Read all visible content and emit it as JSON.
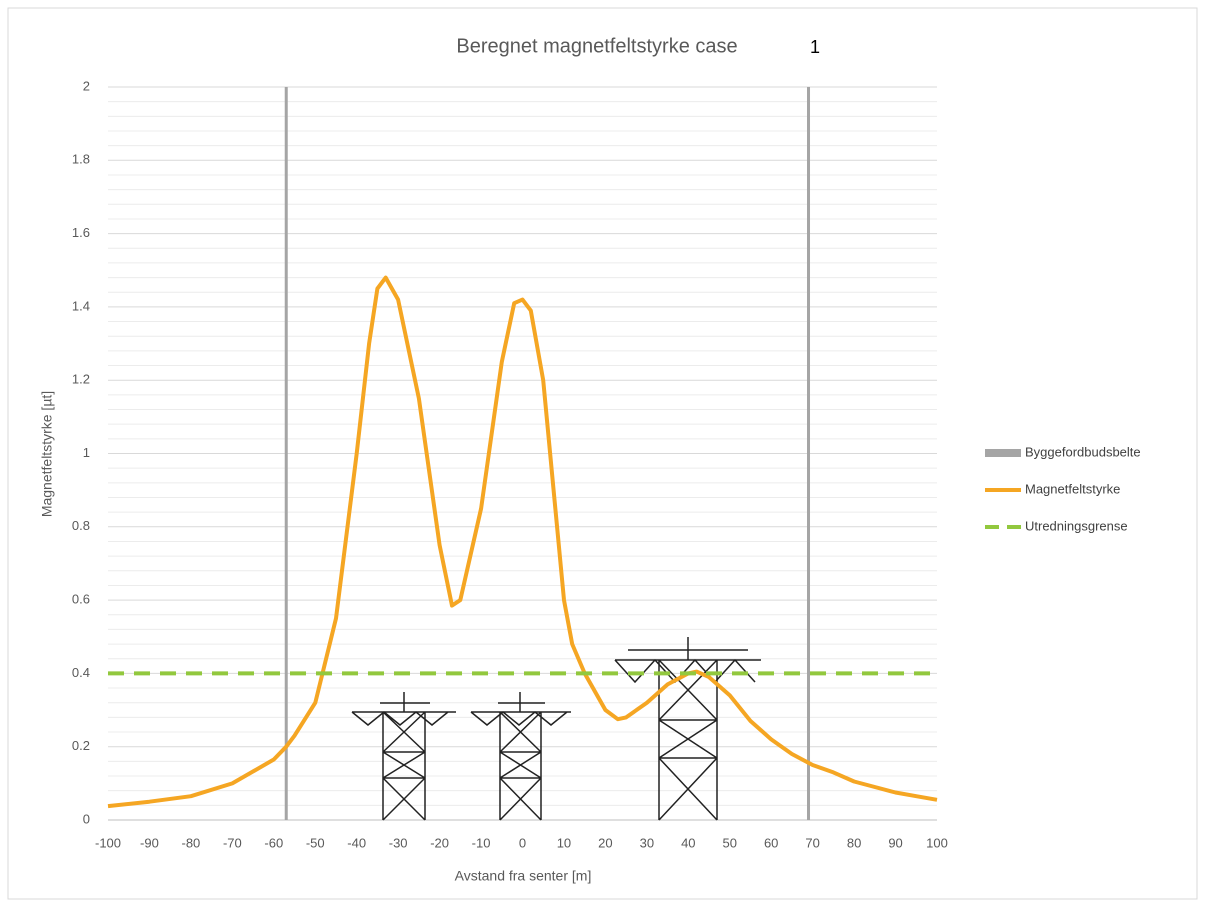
{
  "chart_data": {
    "type": "line",
    "title": "Beregnet magnetfeltstyrke case",
    "title_suffix": "1",
    "xlabel": "Avstand fra senter [m]",
    "ylabel": "Magnetfeltstyrke [µt]",
    "xlim": [
      -100,
      100
    ],
    "ylim": [
      0,
      2
    ],
    "xticks": [
      -100,
      -90,
      -80,
      -70,
      -60,
      -50,
      -40,
      -30,
      -20,
      -10,
      0,
      10,
      20,
      30,
      40,
      50,
      60,
      70,
      80,
      90,
      100
    ],
    "yticks": [
      0,
      0.2,
      0.4,
      0.6,
      0.8,
      1,
      1.2,
      1.4,
      1.6,
      1.8,
      2
    ],
    "grid": true,
    "legend": "right",
    "series": [
      {
        "name": "Byggefordbudsbelte",
        "color": "#a5a5a5",
        "x_positions": [
          -57,
          69
        ]
      },
      {
        "name": "Magnetfeltstyrke",
        "color": "#f5a623",
        "x": [
          -100,
          -90,
          -80,
          -70,
          -60,
          -57,
          -55,
          -50,
          -45,
          -40,
          -37,
          -35,
          -33,
          -30,
          -25,
          -20,
          -17,
          -15,
          -10,
          -5,
          -2,
          0,
          2,
          5,
          10,
          12,
          15,
          20,
          23,
          25,
          30,
          35,
          40,
          42,
          45,
          50,
          55,
          60,
          65,
          70,
          75,
          80,
          85,
          90,
          95,
          100
        ],
        "values": [
          0.038,
          0.05,
          0.065,
          0.1,
          0.165,
          0.2,
          0.23,
          0.32,
          0.55,
          1.0,
          1.3,
          1.45,
          1.48,
          1.42,
          1.15,
          0.75,
          0.585,
          0.6,
          0.85,
          1.25,
          1.41,
          1.42,
          1.39,
          1.2,
          0.6,
          0.48,
          0.4,
          0.3,
          0.275,
          0.28,
          0.32,
          0.37,
          0.4,
          0.405,
          0.39,
          0.34,
          0.27,
          0.22,
          0.18,
          0.15,
          0.13,
          0.105,
          0.09,
          0.075,
          0.065,
          0.055
        ]
      },
      {
        "name": "Utredningsgrense",
        "color": "#92c83e",
        "value": 0.4,
        "dashed": true
      }
    ]
  }
}
